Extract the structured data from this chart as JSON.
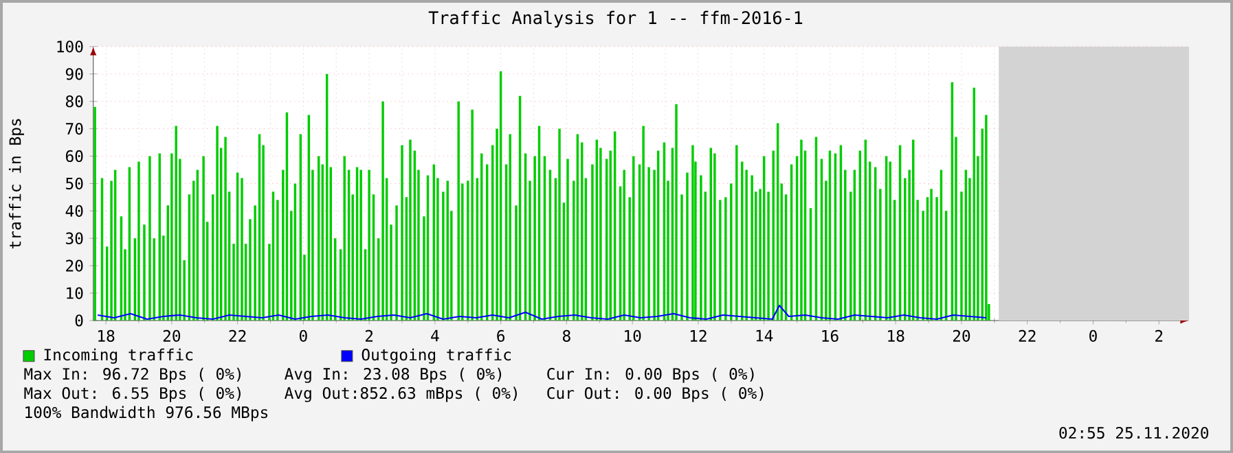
{
  "chart_data": {
    "type": "bar",
    "title": "Traffic Analysis for 1 -- ffm-2016-1",
    "ylabel": "traffic in Bps",
    "xlim": [
      "2020-11-23T17:37",
      "2020-11-25T02:55"
    ],
    "ylim": [
      0,
      100
    ],
    "xticks": [
      {
        "value": "2020-11-23T18:00",
        "label": "18"
      },
      {
        "value": "2020-11-23T20:00",
        "label": "20"
      },
      {
        "value": "2020-11-23T22:00",
        "label": "22"
      },
      {
        "value": "2020-11-24T00:00",
        "label": "0"
      },
      {
        "value": "2020-11-24T02:00",
        "label": "2"
      },
      {
        "value": "2020-11-24T04:00",
        "label": "4"
      },
      {
        "value": "2020-11-24T06:00",
        "label": "6"
      },
      {
        "value": "2020-11-24T08:00",
        "label": "8"
      },
      {
        "value": "2020-11-24T10:00",
        "label": "10"
      },
      {
        "value": "2020-11-24T12:00",
        "label": "12"
      },
      {
        "value": "2020-11-24T14:00",
        "label": "14"
      },
      {
        "value": "2020-11-24T16:00",
        "label": "16"
      },
      {
        "value": "2020-11-24T18:00",
        "label": "18"
      },
      {
        "value": "2020-11-24T20:00",
        "label": "20"
      },
      {
        "value": "2020-11-24T22:00",
        "label": "22"
      },
      {
        "value": "2020-11-25T00:00",
        "label": "0"
      },
      {
        "value": "2020-11-25T02:00",
        "label": "2"
      }
    ],
    "yticks": [
      0,
      10,
      20,
      30,
      40,
      50,
      60,
      70,
      80,
      90,
      100
    ],
    "grid": true,
    "legend": "bottom",
    "bands": [
      {
        "axis": "x",
        "from": "2020-11-24T21:08",
        "to": "2020-11-25T02:55",
        "color": "#d3d3d3"
      }
    ],
    "series": [
      {
        "name": "Incoming traffic",
        "color": "#00cc00",
        "x": [
          "2020-11-23T17:40",
          "2020-11-23T17:53",
          "2020-11-23T18:02",
          "2020-11-23T18:10",
          "2020-11-23T18:17",
          "2020-11-23T18:28",
          "2020-11-23T18:35",
          "2020-11-23T18:43",
          "2020-11-23T18:53",
          "2020-11-23T19:00",
          "2020-11-23T19:10",
          "2020-11-23T19:20",
          "2020-11-23T19:28",
          "2020-11-23T19:38",
          "2020-11-23T19:45",
          "2020-11-23T19:53",
          "2020-11-23T20:00",
          "2020-11-23T20:08",
          "2020-11-23T20:15",
          "2020-11-23T20:23",
          "2020-11-23T20:32",
          "2020-11-23T20:40",
          "2020-11-23T20:47",
          "2020-11-23T20:58",
          "2020-11-23T21:05",
          "2020-11-23T21:15",
          "2020-11-23T21:23",
          "2020-11-23T21:30",
          "2020-11-23T21:38",
          "2020-11-23T21:45",
          "2020-11-23T21:53",
          "2020-11-23T22:00",
          "2020-11-23T22:08",
          "2020-11-23T22:15",
          "2020-11-23T22:23",
          "2020-11-23T22:32",
          "2020-11-23T22:40",
          "2020-11-23T22:47",
          "2020-11-23T22:58",
          "2020-11-23T23:05",
          "2020-11-23T23:13",
          "2020-11-23T23:23",
          "2020-11-23T23:30",
          "2020-11-23T23:38",
          "2020-11-23T23:45",
          "2020-11-23T23:55",
          "2020-11-24T00:02",
          "2020-11-24T00:10",
          "2020-11-24T00:17",
          "2020-11-24T00:28",
          "2020-11-24T00:35",
          "2020-11-24T00:43",
          "2020-11-24T00:50",
          "2020-11-24T00:58",
          "2020-11-24T01:08",
          "2020-11-24T01:15",
          "2020-11-24T01:23",
          "2020-11-24T01:30",
          "2020-11-24T01:38",
          "2020-11-24T01:45",
          "2020-11-24T01:53",
          "2020-11-24T02:00",
          "2020-11-24T02:08",
          "2020-11-24T02:17",
          "2020-11-24T02:25",
          "2020-11-24T02:32",
          "2020-11-24T02:40",
          "2020-11-24T02:50",
          "2020-11-24T03:00",
          "2020-11-24T03:08",
          "2020-11-24T03:15",
          "2020-11-24T03:23",
          "2020-11-24T03:30",
          "2020-11-24T03:40",
          "2020-11-24T03:47",
          "2020-11-24T03:58",
          "2020-11-24T04:05",
          "2020-11-24T04:15",
          "2020-11-24T04:23",
          "2020-11-24T04:30",
          "2020-11-24T04:43",
          "2020-11-24T04:50",
          "2020-11-24T05:00",
          "2020-11-24T05:08",
          "2020-11-24T05:17",
          "2020-11-24T05:25",
          "2020-11-24T05:35",
          "2020-11-24T05:45",
          "2020-11-24T05:53",
          "2020-11-24T06:00",
          "2020-11-24T06:10",
          "2020-11-24T06:17",
          "2020-11-24T06:28",
          "2020-11-24T06:35",
          "2020-11-24T06:45",
          "2020-11-24T06:53",
          "2020-11-24T07:02",
          "2020-11-24T07:10",
          "2020-11-24T07:20",
          "2020-11-24T07:30",
          "2020-11-24T07:40",
          "2020-11-24T07:47",
          "2020-11-24T07:55",
          "2020-11-24T08:02",
          "2020-11-24T08:13",
          "2020-11-24T08:20",
          "2020-11-24T08:28",
          "2020-11-24T08:35",
          "2020-11-24T08:47",
          "2020-11-24T08:55",
          "2020-11-24T09:02",
          "2020-11-24T09:13",
          "2020-11-24T09:20",
          "2020-11-24T09:28",
          "2020-11-24T09:38",
          "2020-11-24T09:45",
          "2020-11-24T09:55",
          "2020-11-24T10:02",
          "2020-11-24T10:13",
          "2020-11-24T10:20",
          "2020-11-24T10:30",
          "2020-11-24T10:40",
          "2020-11-24T10:47",
          "2020-11-24T10:58",
          "2020-11-24T11:05",
          "2020-11-24T11:13",
          "2020-11-24T11:20",
          "2020-11-24T11:30",
          "2020-11-24T11:40",
          "2020-11-24T11:50",
          "2020-11-24T11:55",
          "2020-11-24T12:05",
          "2020-11-24T12:13",
          "2020-11-24T12:23",
          "2020-11-24T12:30",
          "2020-11-24T12:40",
          "2020-11-24T12:50",
          "2020-11-24T13:00",
          "2020-11-24T13:10",
          "2020-11-24T13:20",
          "2020-11-24T13:28",
          "2020-11-24T13:38",
          "2020-11-24T13:45",
          "2020-11-24T13:53",
          "2020-11-24T14:00",
          "2020-11-24T14:08",
          "2020-11-24T14:17",
          "2020-11-24T14:25",
          "2020-11-24T14:32",
          "2020-11-24T14:40",
          "2020-11-24T14:50",
          "2020-11-24T15:00",
          "2020-11-24T15:08",
          "2020-11-24T15:15",
          "2020-11-24T15:25",
          "2020-11-24T15:35",
          "2020-11-24T15:45",
          "2020-11-24T15:53",
          "2020-11-24T16:00",
          "2020-11-24T16:10",
          "2020-11-24T16:20",
          "2020-11-24T16:28",
          "2020-11-24T16:38",
          "2020-11-24T16:45",
          "2020-11-24T16:55",
          "2020-11-24T17:05",
          "2020-11-24T17:13",
          "2020-11-24T17:23",
          "2020-11-24T17:32",
          "2020-11-24T17:43",
          "2020-11-24T17:50",
          "2020-11-24T17:58",
          "2020-11-24T18:08",
          "2020-11-24T18:17",
          "2020-11-24T18:25",
          "2020-11-24T18:32",
          "2020-11-24T18:40",
          "2020-11-24T18:50",
          "2020-11-24T18:58",
          "2020-11-24T19:05",
          "2020-11-24T19:15",
          "2020-11-24T19:23",
          "2020-11-24T19:32",
          "2020-11-24T19:43",
          "2020-11-24T19:50",
          "2020-11-24T20:00",
          "2020-11-24T20:08",
          "2020-11-24T20:15",
          "2020-11-24T20:23",
          "2020-11-24T20:30",
          "2020-11-24T20:38",
          "2020-11-24T20:45",
          "2020-11-24T20:50"
        ],
        "values": [
          78,
          52,
          27,
          51,
          55,
          38,
          26,
          56,
          30,
          58,
          35,
          60,
          30,
          61,
          31,
          42,
          61,
          71,
          59,
          22,
          46,
          51,
          55,
          60,
          36,
          46,
          71,
          63,
          67,
          47,
          28,
          54,
          52,
          28,
          37,
          42,
          68,
          64,
          28,
          47,
          44,
          55,
          76,
          40,
          50,
          68,
          24,
          75,
          55,
          60,
          57,
          90,
          56,
          30,
          26,
          60,
          55,
          46,
          56,
          55,
          26,
          55,
          46,
          30,
          80,
          52,
          35,
          42,
          64,
          45,
          66,
          62,
          55,
          38,
          53,
          57,
          52,
          47,
          51,
          40,
          80,
          50,
          51,
          77,
          52,
          61,
          57,
          64,
          70,
          91,
          57,
          68,
          42,
          82,
          61,
          51,
          60,
          71,
          60,
          55,
          52,
          70,
          43,
          59,
          51,
          68,
          65,
          52,
          57,
          66,
          63,
          59,
          62,
          69,
          49,
          55,
          45,
          60,
          57,
          71,
          56,
          55,
          62,
          65,
          51,
          63,
          79,
          46,
          54,
          64,
          58,
          53,
          47,
          63,
          61,
          44,
          45,
          50,
          64,
          58,
          55,
          53,
          47,
          48,
          60,
          47,
          62,
          72,
          50,
          46,
          57,
          60,
          66,
          62,
          41,
          67,
          59,
          51,
          62,
          61,
          64,
          55,
          47,
          55,
          62,
          66,
          58,
          56,
          48,
          60,
          58,
          44,
          64,
          52,
          55,
          66,
          44,
          40,
          45,
          48,
          45,
          55,
          40,
          87,
          67,
          47,
          55,
          52,
          85,
          60,
          70,
          75,
          6
        ]
      },
      {
        "name": "Outgoing traffic",
        "type": "line",
        "color": "#0000ff",
        "x": [
          "2020-11-23T17:45",
          "2020-11-23T18:15",
          "2020-11-23T18:45",
          "2020-11-23T19:15",
          "2020-11-23T19:45",
          "2020-11-23T20:15",
          "2020-11-23T20:45",
          "2020-11-23T21:15",
          "2020-11-23T21:45",
          "2020-11-23T22:15",
          "2020-11-23T22:45",
          "2020-11-23T23:15",
          "2020-11-23T23:45",
          "2020-11-24T00:15",
          "2020-11-24T00:45",
          "2020-11-24T01:15",
          "2020-11-24T01:45",
          "2020-11-24T02:15",
          "2020-11-24T02:45",
          "2020-11-24T03:15",
          "2020-11-24T03:45",
          "2020-11-24T04:15",
          "2020-11-24T04:45",
          "2020-11-24T05:15",
          "2020-11-24T05:45",
          "2020-11-24T06:15",
          "2020-11-24T06:45",
          "2020-11-24T07:15",
          "2020-11-24T07:45",
          "2020-11-24T08:15",
          "2020-11-24T08:45",
          "2020-11-24T09:15",
          "2020-11-24T09:45",
          "2020-11-24T10:15",
          "2020-11-24T10:45",
          "2020-11-24T11:15",
          "2020-11-24T11:45",
          "2020-11-24T12:15",
          "2020-11-24T12:45",
          "2020-11-24T13:15",
          "2020-11-24T13:45",
          "2020-11-24T14:15",
          "2020-11-24T14:28",
          "2020-11-24T14:45",
          "2020-11-24T15:15",
          "2020-11-24T15:45",
          "2020-11-24T16:15",
          "2020-11-24T16:45",
          "2020-11-24T17:15",
          "2020-11-24T17:45",
          "2020-11-24T18:15",
          "2020-11-24T18:45",
          "2020-11-24T19:15",
          "2020-11-24T19:45",
          "2020-11-24T20:15",
          "2020-11-24T20:45"
        ],
        "values": [
          2,
          1,
          2.5,
          0.5,
          1.5,
          2,
          1,
          0.5,
          2,
          1.5,
          1,
          2,
          0.5,
          1.5,
          2,
          1,
          0.5,
          1.5,
          2,
          1,
          2.5,
          0.5,
          1.5,
          1,
          2,
          1,
          3,
          0.5,
          1.5,
          2,
          1,
          0.5,
          2,
          1,
          1.5,
          2.5,
          1,
          0.5,
          2,
          1.5,
          1,
          0.5,
          5.5,
          1.5,
          2,
          1,
          0.5,
          2,
          1.5,
          1,
          2,
          1,
          0.5,
          2,
          1.5,
          1
        ]
      }
    ],
    "annotations": [
      "Max In: 96.72 Bps ( 0%)",
      "Avg In: 23.08 Bps ( 0%)",
      "Cur In: 0.00 Bps ( 0%)",
      "Max Out: 6.55 Bps ( 0%)",
      "Avg Out:852.63 mBps ( 0%)",
      "Cur Out: 0.00 Bps ( 0%)",
      "100% Bandwidth 976.56 MBps",
      "02:55 25.11.2020"
    ]
  }
}
